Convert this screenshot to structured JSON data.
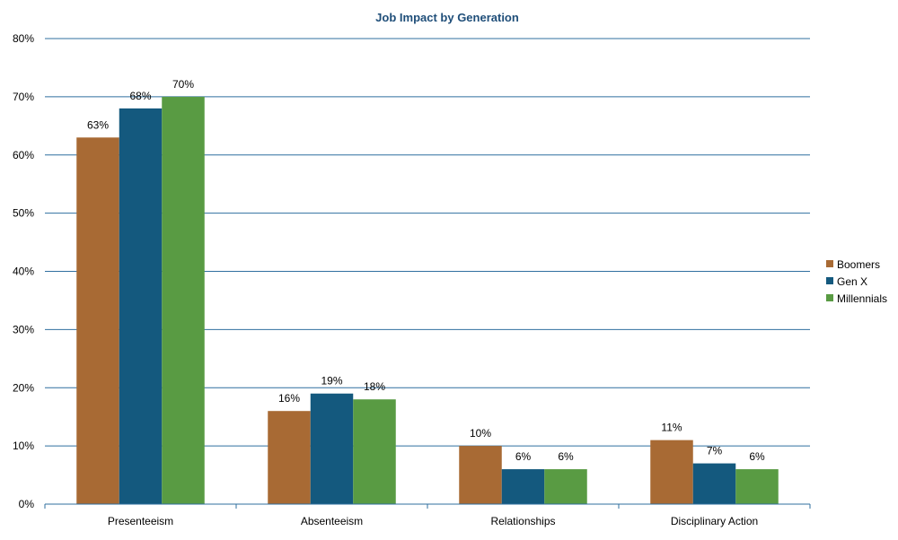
{
  "chart_data": {
    "type": "bar",
    "title": "Job Impact by Generation",
    "xlabel": "",
    "ylabel": "",
    "categories": [
      "Presenteeism",
      "Absenteeism",
      "Relationships",
      "Disciplinary Action"
    ],
    "series": [
      {
        "name": "Boomers",
        "color": "#a86a34",
        "values": [
          63,
          16,
          10,
          11
        ]
      },
      {
        "name": "Gen X",
        "color": "#14597e",
        "values": [
          68,
          19,
          6,
          7
        ]
      },
      {
        "name": "Millennials",
        "color": "#599b43",
        "values": [
          70,
          18,
          6,
          6
        ]
      }
    ],
    "data_labels": [
      [
        "63%",
        "16%",
        "10%",
        "11%"
      ],
      [
        "68%",
        "19%",
        "6%",
        "7%"
      ],
      [
        "70%",
        "18%",
        "6%",
        "6%"
      ]
    ],
    "ylim": [
      0,
      80
    ],
    "yticks": [
      0,
      10,
      20,
      30,
      40,
      50,
      60,
      70,
      80
    ],
    "ytick_labels": [
      "0%",
      "10%",
      "20%",
      "30%",
      "40%",
      "50%",
      "60%",
      "70%",
      "80%"
    ],
    "grid": true,
    "gridline_color": "#2f6f9f",
    "legend_position": "right"
  }
}
